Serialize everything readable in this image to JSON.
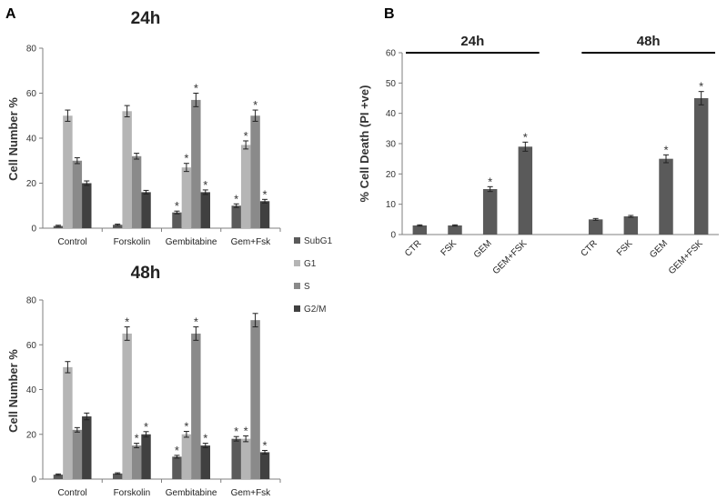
{
  "panels": {
    "a": "A",
    "b": "B"
  },
  "colors": {
    "SubG1": "#5a5a5a",
    "G1": "#b5b5b5",
    "S": "#8a8a8a",
    "G2/M": "#404040",
    "death": "#5a5a5a"
  },
  "chart_data": [
    {
      "type": "bar",
      "title": "24h",
      "ylabel": "Cell Number %",
      "xlabel": "",
      "ylim": [
        0,
        80
      ],
      "yticks": [
        "0",
        "20",
        "40",
        "60",
        "80"
      ],
      "categories": [
        "Control",
        "Forskolin",
        "Gembitabine",
        "Gem+Fsk"
      ],
      "series": [
        {
          "name": "SubG1",
          "values": [
            1,
            1.5,
            7,
            10
          ],
          "errors": [
            0.3,
            0.3,
            0.6,
            0.8
          ],
          "sig": [
            false,
            false,
            true,
            true
          ]
        },
        {
          "name": "G1",
          "values": [
            50,
            52,
            27,
            37
          ],
          "errors": [
            2.5,
            2.5,
            1.8,
            1.8
          ],
          "sig": [
            false,
            false,
            true,
            true
          ]
        },
        {
          "name": "S",
          "values": [
            30,
            32,
            57,
            50
          ],
          "errors": [
            1.3,
            1.3,
            3,
            2.5
          ],
          "sig": [
            false,
            false,
            true,
            true
          ]
        },
        {
          "name": "G2/M",
          "values": [
            20,
            16,
            16,
            12
          ],
          "errors": [
            1,
            0.8,
            1,
            0.8
          ],
          "sig": [
            false,
            false,
            true,
            true
          ]
        }
      ],
      "legend": [
        "SubG1",
        "G1",
        "S",
        "G2/M"
      ],
      "annotations": "*"
    },
    {
      "type": "bar",
      "title": "48h",
      "ylabel": "Cell Number %",
      "xlabel": "",
      "ylim": [
        0,
        80
      ],
      "yticks": [
        "0",
        "20",
        "40",
        "60",
        "80"
      ],
      "categories": [
        "Control",
        "Forskolin",
        "Gembitabine",
        "Gem+Fsk"
      ],
      "series": [
        {
          "name": "SubG1",
          "values": [
            2,
            2.5,
            10,
            18
          ],
          "errors": [
            0.3,
            0.3,
            0.6,
            1
          ],
          "sig": [
            false,
            false,
            true,
            true
          ]
        },
        {
          "name": "G1",
          "values": [
            50,
            65,
            20,
            18
          ],
          "errors": [
            2.5,
            3,
            1.3,
            1.3
          ],
          "sig": [
            false,
            true,
            true,
            true
          ]
        },
        {
          "name": "S",
          "values": [
            22,
            15,
            65,
            71
          ],
          "errors": [
            1,
            1,
            3,
            3
          ],
          "sig": [
            false,
            true,
            true,
            false
          ]
        },
        {
          "name": "G2/M",
          "values": [
            28,
            20,
            15,
            12
          ],
          "errors": [
            1.5,
            1.2,
            1,
            0.8
          ],
          "sig": [
            false,
            true,
            true,
            true
          ]
        }
      ],
      "annotations": "*"
    },
    {
      "type": "bar",
      "title": "",
      "ylabel": "% Cell Death (PI +ve)",
      "xlabel": "",
      "ylim": [
        0,
        60
      ],
      "yticks": [
        "0",
        "10",
        "20",
        "30",
        "40",
        "50",
        "60"
      ],
      "groups": [
        "24h",
        "48h"
      ],
      "categories": [
        "CTR",
        "FSK",
        "GEM",
        "GEM+FSK",
        "CTR",
        "FSK",
        "GEM",
        "GEM+FSK"
      ],
      "values": [
        3,
        3,
        15,
        29,
        5,
        6,
        25,
        45
      ],
      "errors": [
        0.2,
        0.2,
        0.8,
        1.5,
        0.3,
        0.3,
        1.3,
        2.2
      ],
      "sig": [
        false,
        false,
        true,
        true,
        false,
        false,
        true,
        true
      ],
      "annotations": "*"
    }
  ]
}
